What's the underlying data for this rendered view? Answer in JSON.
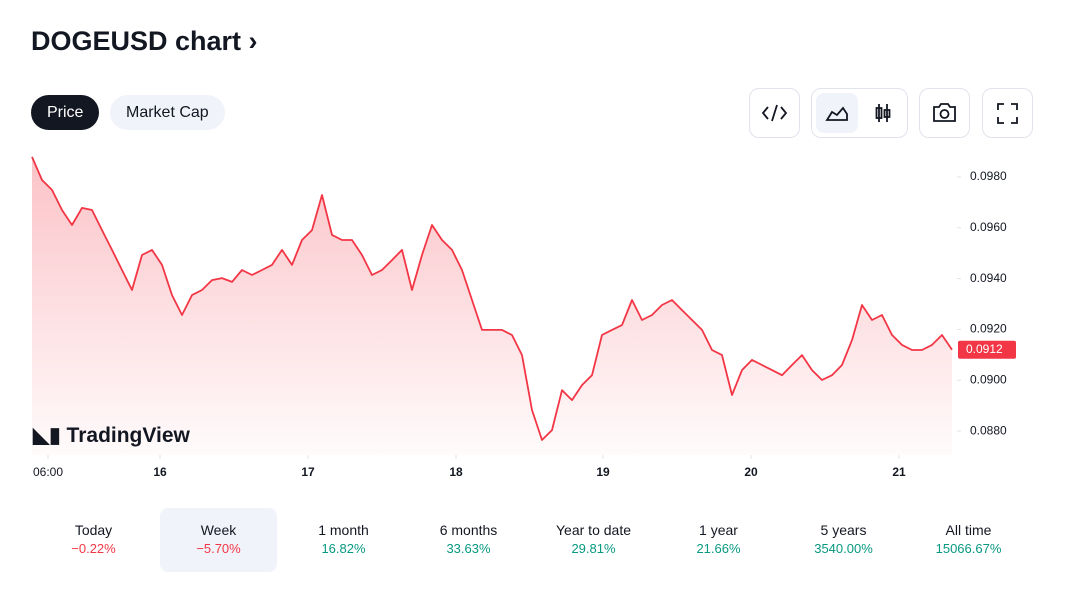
{
  "header": {
    "title": "DOGEUSD chart"
  },
  "tabs": [
    "Price",
    "Market Cap"
  ],
  "watermark": "TradingView",
  "chart_data": {
    "type": "line",
    "color": "#f23645",
    "values": [
      0.09879,
      0.09788,
      0.09749,
      0.0967,
      0.09611,
      0.09678,
      0.0967,
      0.09591,
      0.09513,
      0.09434,
      0.09355,
      0.09493,
      0.09513,
      0.09454,
      0.09335,
      0.09257,
      0.09335,
      0.09355,
      0.09394,
      0.09402,
      0.09387,
      0.09434,
      0.09414,
      0.09434,
      0.09454,
      0.09513,
      0.09454,
      0.09552,
      0.09591,
      0.09729,
      0.09572,
      0.09552,
      0.09552,
      0.09493,
      0.09414,
      0.09434,
      0.09473,
      0.09513,
      0.09355,
      0.09493,
      0.09611,
      0.09552,
      0.09513,
      0.09434,
      0.09316,
      0.09198,
      0.09198,
      0.09198,
      0.09178,
      0.09099,
      0.08883,
      0.08765,
      0.08804,
      0.08961,
      0.08922,
      0.08981,
      0.0902,
      0.09178,
      0.09198,
      0.09217,
      0.09316,
      0.09237,
      0.09257,
      0.09296,
      0.09316,
      0.09276,
      0.09237,
      0.09198,
      0.09119,
      0.09099,
      0.08942,
      0.0904,
      0.0908,
      0.0906,
      0.0904,
      0.0902,
      0.0906,
      0.09099,
      0.0904,
      0.09001,
      0.0902,
      0.0906,
      0.09158,
      0.09296,
      0.09237,
      0.09257,
      0.09178,
      0.09139,
      0.09119,
      0.09119,
      0.09139,
      0.09178,
      0.0912
    ],
    "xlim": [
      0,
      92.5
    ],
    "xticks": [
      {
        "value": 1.6,
        "label": "06:00"
      },
      {
        "value": 12.8,
        "label": "16"
      },
      {
        "value": 27.6,
        "label": "17"
      },
      {
        "value": 42.4,
        "label": "18"
      },
      {
        "value": 57.1,
        "label": "19"
      },
      {
        "value": 71.9,
        "label": "20"
      },
      {
        "value": 86.7,
        "label": "21"
      }
    ],
    "ylim": [
      0.08706,
      0.09906
    ],
    "yticks": [
      {
        "value": 0.098,
        "label": "0.0980"
      },
      {
        "value": 0.096,
        "label": "0.0960"
      },
      {
        "value": 0.094,
        "label": "0.0940"
      },
      {
        "value": 0.092,
        "label": "0.0920"
      },
      {
        "value": 0.09,
        "label": "0.0900"
      },
      {
        "value": 0.088,
        "label": "0.0880"
      }
    ]
  },
  "periods": [
    {
      "name": "Today",
      "change": "−0.22%",
      "trend": "down"
    },
    {
      "name": "Week",
      "change": "−5.70%",
      "trend": "down"
    },
    {
      "name": "1 month",
      "change": "16.82%",
      "trend": "up"
    },
    {
      "name": "6 months",
      "change": "33.63%",
      "trend": "up"
    },
    {
      "name": "Year to date",
      "change": "29.81%",
      "trend": "up"
    },
    {
      "name": "1 year",
      "change": "21.66%",
      "trend": "up"
    },
    {
      "name": "5 years",
      "change": "3540.00%",
      "trend": "up"
    },
    {
      "name": "All time",
      "change": "15066.67%",
      "trend": "up"
    }
  ]
}
